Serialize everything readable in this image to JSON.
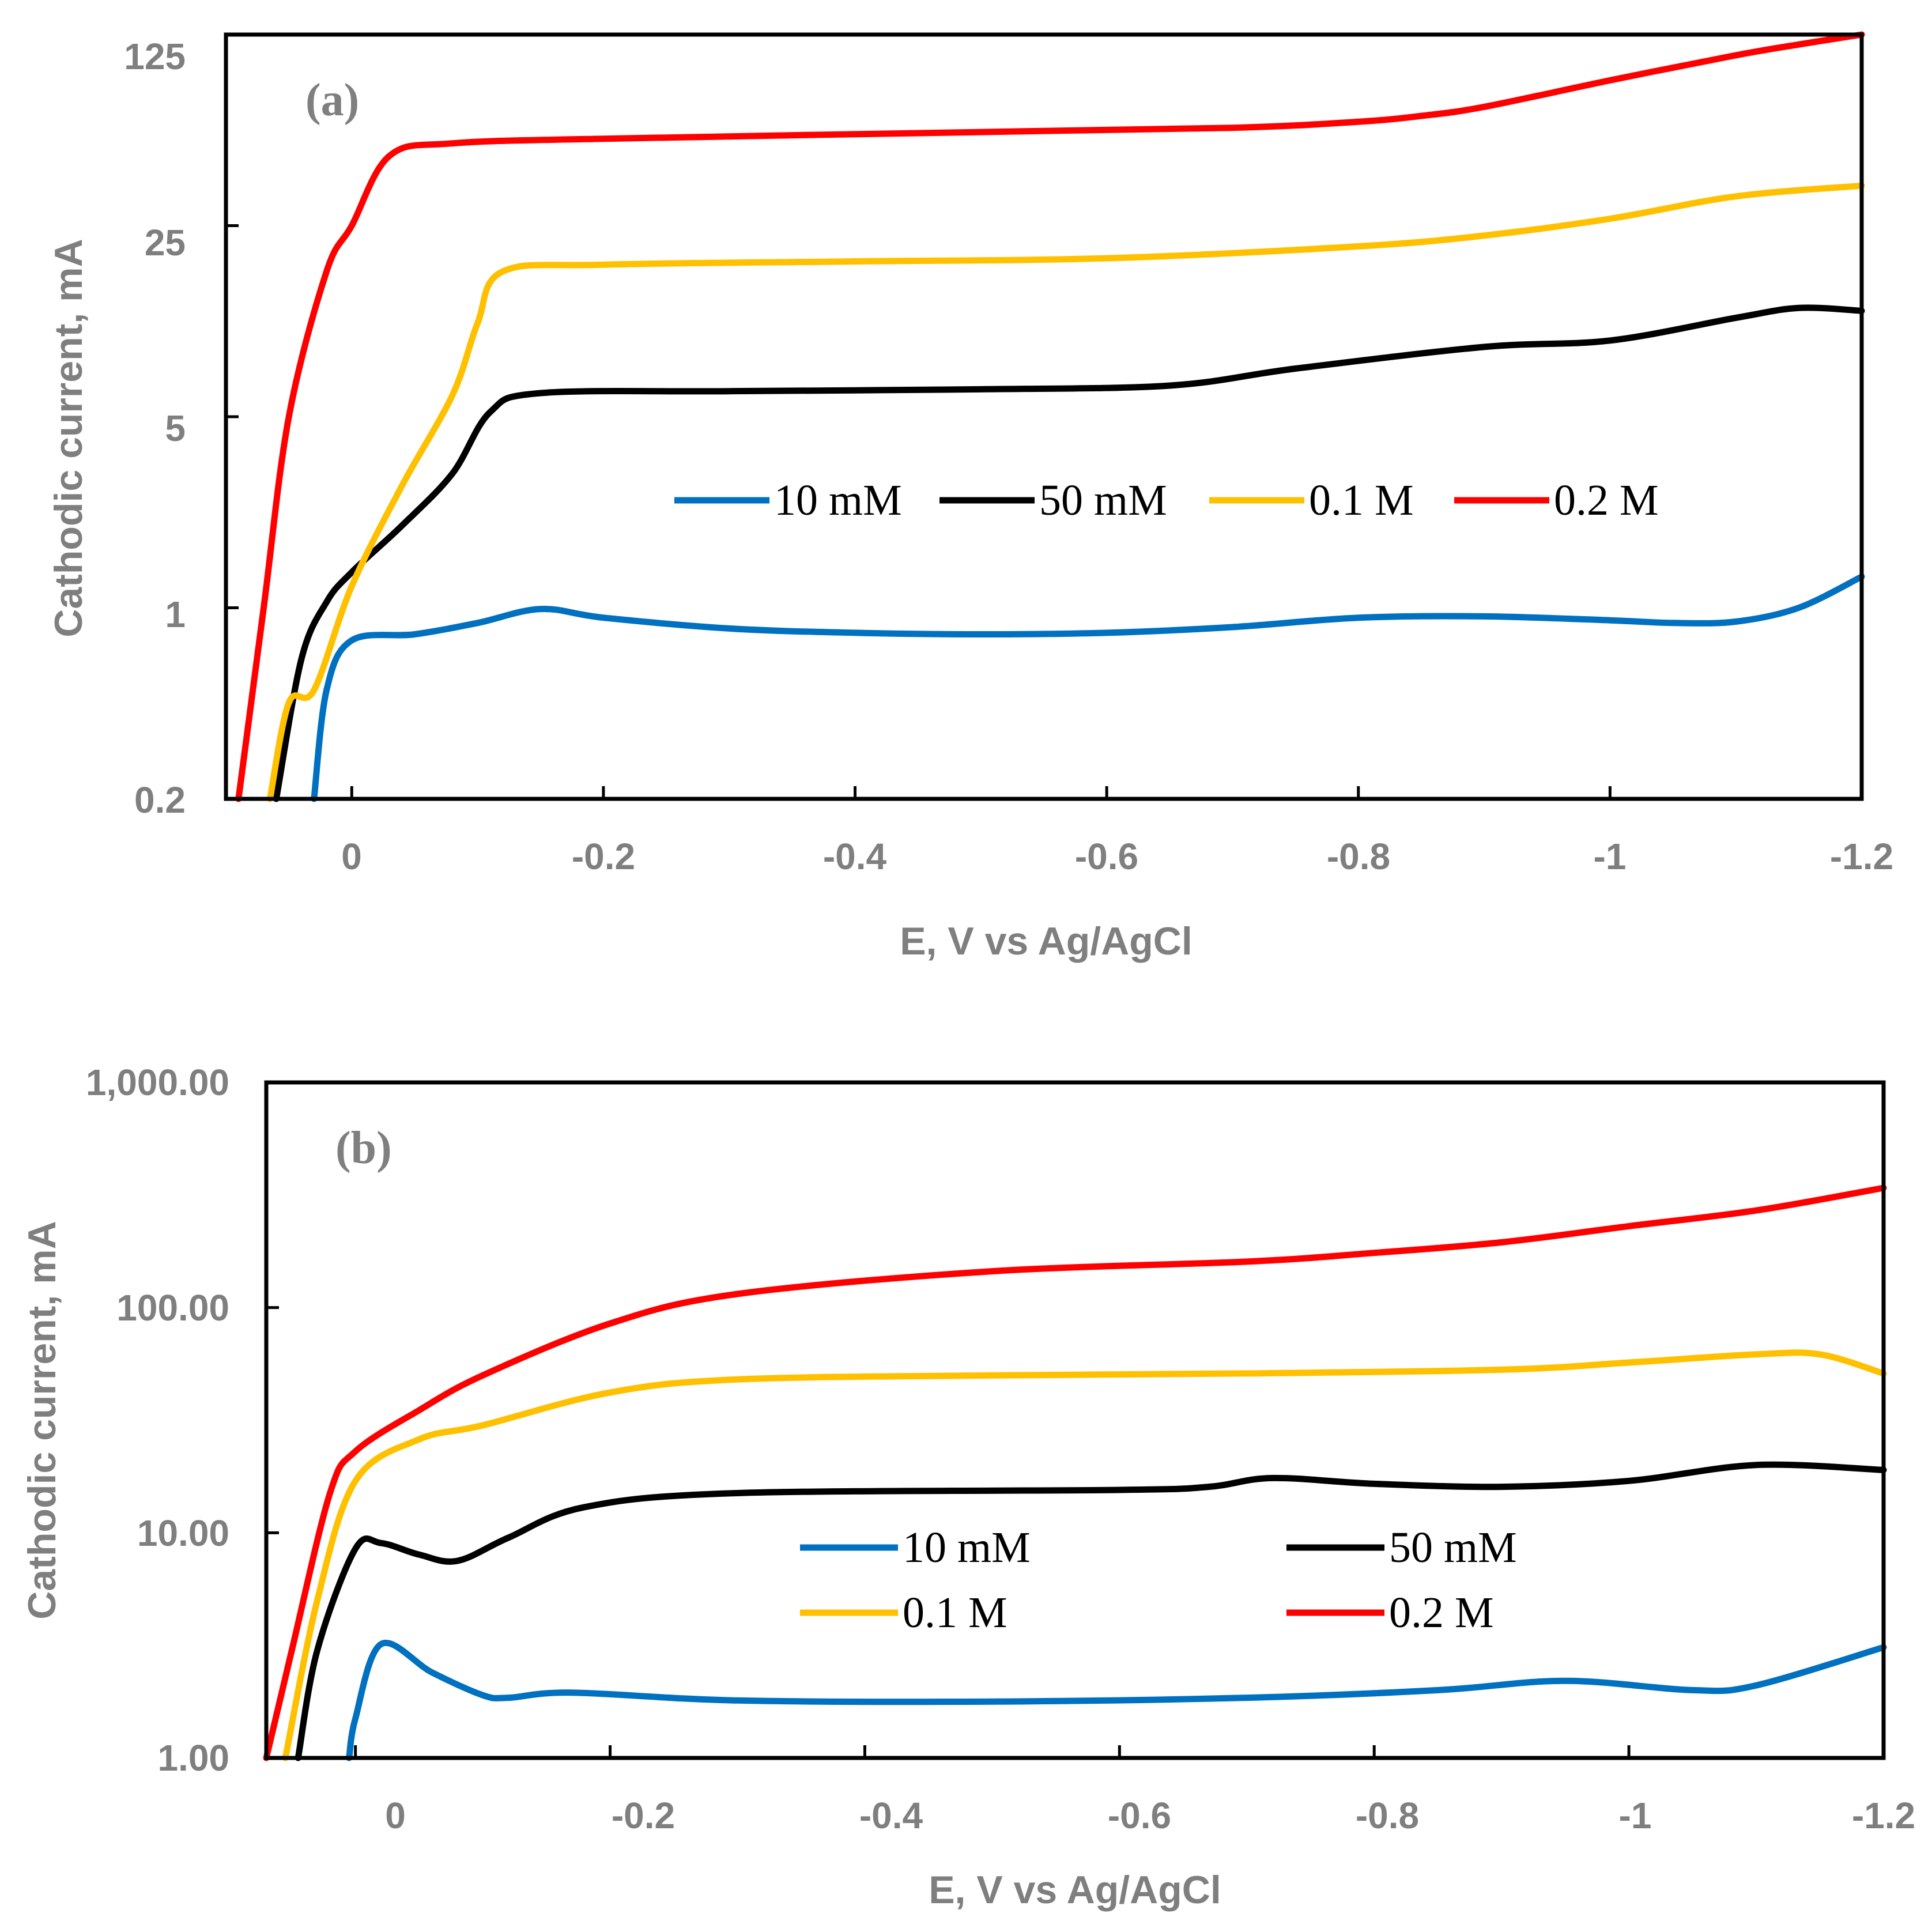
{
  "colors": {
    "10mM": "#0070c0",
    "50mM": "#000000",
    "0.1M": "#ffc000",
    "0.2M": "#ff0000",
    "axis_text": "#7f7f7f"
  },
  "chart_data": [
    {
      "type": "line",
      "panel": "(a)",
      "xlabel": "E, V vs Ag/AgCl",
      "ylabel": "Cathodic current, mA",
      "yscale": "log",
      "xlim": [
        0.1,
        -1.2
      ],
      "ylim": [
        0.2,
        125
      ],
      "xticks": [
        0,
        -0.2,
        -0.4,
        -0.6,
        -0.8,
        -1,
        -1.2
      ],
      "xtick_labels": [
        "0",
        "-0.2",
        "-0.4",
        "-0.6",
        "-0.8",
        "-1",
        "-1.2"
      ],
      "yticks": [
        0.2,
        1,
        5,
        25,
        125
      ],
      "ytick_labels": [
        "0.2",
        "1",
        "5",
        "25",
        "125"
      ],
      "legend_position": "center",
      "series": [
        {
          "name": "10 mM",
          "color_key": "10mM",
          "x": [
            0.03,
            0.02,
            0.0,
            -0.05,
            -0.1,
            -0.15,
            -0.2,
            -0.3,
            -0.4,
            -0.5,
            -0.6,
            -0.7,
            -0.8,
            -0.9,
            -1.0,
            -1.05,
            -1.1,
            -1.15,
            -1.2
          ],
          "y": [
            0.2,
            0.5,
            0.76,
            0.8,
            0.88,
            0.99,
            0.92,
            0.84,
            0.81,
            0.8,
            0.81,
            0.85,
            0.92,
            0.93,
            0.9,
            0.88,
            0.89,
            1.0,
            1.3
          ]
        },
        {
          "name": "50 mM",
          "color_key": "50mM",
          "x": [
            0.06,
            0.04,
            0.02,
            0.0,
            -0.04,
            -0.08,
            -0.11,
            -0.15,
            -0.3,
            -0.5,
            -0.65,
            -0.75,
            -0.9,
            -1.0,
            -1.1,
            -1.15,
            -1.2
          ],
          "y": [
            0.2,
            0.65,
            1.05,
            1.35,
            2.0,
            3.1,
            5.2,
            6.1,
            6.2,
            6.3,
            6.5,
            7.5,
            9.0,
            9.5,
            11.5,
            12.5,
            12.2
          ]
        },
        {
          "name": "0.1 M",
          "color_key": "0.1M",
          "x": [
            0.065,
            0.05,
            0.03,
            0.0,
            -0.04,
            -0.08,
            -0.1,
            -0.12,
            -0.2,
            -0.4,
            -0.6,
            -0.8,
            -0.9,
            -1.0,
            -1.1,
            -1.2
          ],
          "y": [
            0.2,
            0.45,
            0.5,
            1.2,
            2.8,
            6.0,
            11.0,
            17.0,
            18.0,
            18.5,
            19.0,
            21.0,
            23.0,
            26.5,
            32.0,
            35.0
          ]
        },
        {
          "name": "0.2 M",
          "color_key": "0.2M",
          "x": [
            0.09,
            0.07,
            0.05,
            0.02,
            0.0,
            -0.03,
            -0.08,
            -0.2,
            -0.5,
            -0.7,
            -0.8,
            -0.85,
            -0.9,
            -1.0,
            -1.1,
            -1.15,
            -1.2
          ],
          "y": [
            0.2,
            1.0,
            5.0,
            17.0,
            25.0,
            45.0,
            50.0,
            52.0,
            55.0,
            57.0,
            60.0,
            63.0,
            68.0,
            85.0,
            105.0,
            115.0,
            125.0
          ]
        }
      ]
    },
    {
      "type": "line",
      "panel": "(b)",
      "xlabel": "E, V vs Ag/AgCl",
      "ylabel": "Cathodic current, mA",
      "yscale": "log",
      "xlim": [
        0.07,
        -1.2
      ],
      "ylim": [
        1.0,
        1000.0
      ],
      "xticks": [
        0,
        -0.2,
        -0.4,
        -0.6,
        -0.8,
        -1,
        -1.2
      ],
      "xtick_labels": [
        "0",
        "-0.2",
        "-0.4",
        "-0.6",
        "-0.8",
        "-1",
        "-1.2"
      ],
      "yticks": [
        1,
        10,
        100,
        1000
      ],
      "ytick_labels": [
        "1.00",
        "10.00",
        "100.00",
        "1,000.00"
      ],
      "legend_position": "center",
      "series": [
        {
          "name": "10 mM",
          "color_key": "10mM",
          "x": [
            0.005,
            0.0,
            -0.02,
            -0.06,
            -0.1,
            -0.12,
            -0.17,
            -0.3,
            -0.5,
            -0.7,
            -0.85,
            -0.95,
            -1.05,
            -1.1,
            -1.2
          ],
          "y": [
            1.0,
            1.5,
            3.2,
            2.4,
            1.9,
            1.85,
            1.95,
            1.8,
            1.78,
            1.85,
            2.0,
            2.2,
            2.0,
            2.1,
            3.1
          ]
        },
        {
          "name": "50 mM",
          "color_key": "50mM",
          "x": [
            0.045,
            0.03,
            0.0,
            -0.02,
            -0.05,
            -0.08,
            -0.12,
            -0.18,
            -0.3,
            -0.6,
            -0.67,
            -0.72,
            -0.8,
            -0.9,
            -1.0,
            -1.1,
            -1.2
          ],
          "y": [
            1.0,
            3.0,
            8.5,
            9.0,
            8.0,
            7.5,
            9.5,
            13.0,
            15.0,
            15.5,
            16.0,
            17.5,
            16.5,
            16.0,
            17.0,
            20.0,
            19.0
          ]
        },
        {
          "name": "0.1 M",
          "color_key": "0.1M",
          "x": [
            0.055,
            0.03,
            0.0,
            -0.05,
            -0.1,
            -0.2,
            -0.3,
            -0.5,
            -0.7,
            -0.9,
            -1.0,
            -1.1,
            -1.15,
            -1.2
          ],
          "y": [
            1.0,
            5.0,
            17.0,
            26.0,
            30.0,
            42.0,
            48.0,
            50.0,
            51.0,
            53.0,
            57.0,
            62.0,
            62.0,
            51.0
          ]
        },
        {
          "name": "0.2 M",
          "color_key": "0.2M",
          "x": [
            0.07,
            0.05,
            0.02,
            0.0,
            -0.05,
            -0.1,
            -0.2,
            -0.3,
            -0.5,
            -0.7,
            -0.8,
            -0.9,
            -1.0,
            -1.1,
            -1.2
          ],
          "y": [
            1.0,
            3.0,
            15.0,
            23.0,
            35.0,
            50.0,
            85.0,
            115.0,
            145.0,
            160.0,
            175.0,
            195.0,
            230.0,
            270.0,
            340.0
          ]
        }
      ]
    }
  ]
}
